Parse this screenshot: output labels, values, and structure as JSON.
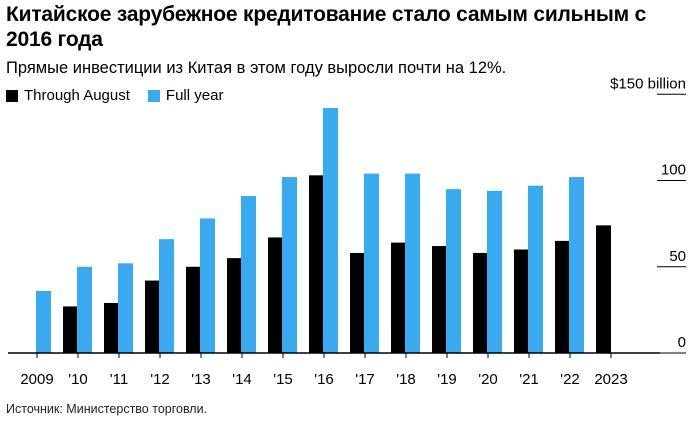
{
  "header": {
    "title": "Китайское зарубежное кредитование стало самым сильным с 2016 года",
    "subtitle": "Прямые инвестиции из Китая в этом году выросли почти на 12%."
  },
  "footer": {
    "source": "Источник: Министерство торговли."
  },
  "colors": {
    "through_august": "#000000",
    "full_year": "#3aaaf0",
    "axis": "#000000",
    "grid": "#000000"
  },
  "chart_data": {
    "type": "bar",
    "title": "Китайское зарубежное кредитование стало самым сильным с 2016 года",
    "subtitle": "Прямые инвестиции из Китая в этом году выросли почти на 12%.",
    "categories": [
      "2009",
      "'10",
      "'11",
      "'12",
      "'13",
      "'14",
      "'15",
      "'16",
      "'17",
      "'18",
      "'19",
      "'20",
      "'21",
      "'22",
      "2023"
    ],
    "series": [
      {
        "name": "Through August",
        "values": [
          null,
          27,
          29,
          42,
          50,
          55,
          67,
          103,
          58,
          64,
          62,
          58,
          60,
          65,
          74
        ]
      },
      {
        "name": "Full year",
        "values": [
          36,
          50,
          52,
          66,
          78,
          91,
          102,
          142,
          104,
          104,
          95,
          94,
          97,
          102,
          null
        ]
      }
    ],
    "ylim": [
      0,
      150
    ],
    "yticks": [
      {
        "value": 150,
        "label": "$150 billion"
      },
      {
        "value": 100,
        "label": "100"
      },
      {
        "value": 50,
        "label": "50"
      },
      {
        "value": 0,
        "label": "0"
      }
    ],
    "xlabel": "",
    "ylabel": "",
    "legend": "top-left",
    "grid": false
  }
}
